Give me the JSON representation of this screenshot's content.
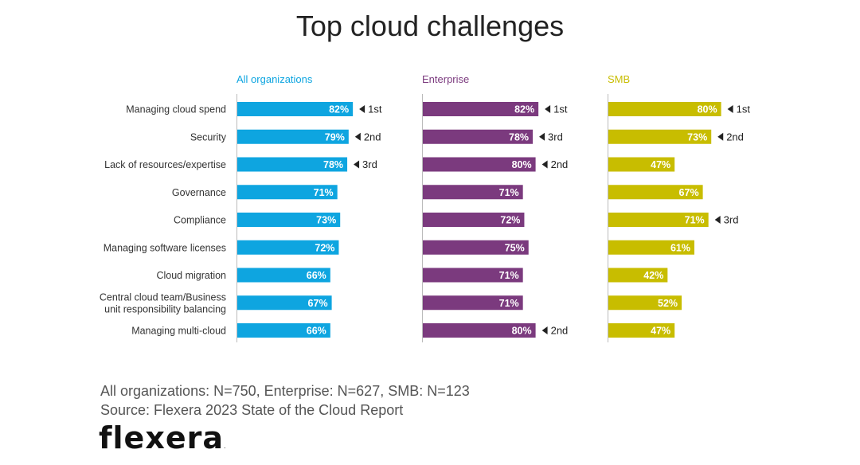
{
  "colors": {
    "all": "#0ea5e0",
    "enterprise": "#7b3a7e",
    "smb": "#c8bd00",
    "label_text": "#ffffff",
    "axis": "#bbbbbb",
    "text": "#333333"
  },
  "chart_data": {
    "type": "bar",
    "title": "Top cloud challenges",
    "categories": [
      "Managing cloud spend",
      "Security",
      "Lack of resources/expertise",
      "Governance",
      "Compliance",
      "Managing software licenses",
      "Cloud migration",
      "Central cloud team/Business unit responsibility balancing",
      "Managing multi-cloud"
    ],
    "category_lines": [
      [
        "Managing cloud spend"
      ],
      [
        "Security"
      ],
      [
        "Lack of resources/expertise"
      ],
      [
        "Governance"
      ],
      [
        "Compliance"
      ],
      [
        "Managing software licenses"
      ],
      [
        "Cloud migration"
      ],
      [
        "Central cloud team/Business",
        "unit responsibility balancing"
      ],
      [
        "Managing multi-cloud"
      ]
    ],
    "series": [
      {
        "name": "All organizations",
        "color_key": "all",
        "values": [
          82,
          79,
          78,
          71,
          73,
          72,
          66,
          67,
          66
        ],
        "labels": [
          "82%",
          "79%",
          "78%",
          "71%",
          "73%",
          "72%",
          "66%",
          "67%",
          "66%"
        ],
        "ranks": [
          "1st",
          "2nd",
          "3rd",
          "",
          "",
          "",
          "",
          "",
          ""
        ]
      },
      {
        "name": "Enterprise",
        "color_key": "enterprise",
        "values": [
          82,
          78,
          80,
          71,
          72,
          75,
          71,
          71,
          80
        ],
        "labels": [
          "82%",
          "78%",
          "80%",
          "71%",
          "72%",
          "75%",
          "71%",
          "71%",
          "80%"
        ],
        "ranks": [
          "1st",
          "3rd",
          "2nd",
          "",
          "",
          "",
          "",
          "",
          "2nd"
        ]
      },
      {
        "name": "SMB",
        "color_key": "smb",
        "values": [
          80,
          73,
          47,
          67,
          71,
          61,
          42,
          52,
          47
        ],
        "labels": [
          "80%",
          "73%",
          "47%",
          "67%",
          "71%",
          "61%",
          "42%",
          "52%",
          "47%"
        ],
        "ranks": [
          "1st",
          "2nd",
          "",
          "",
          "3rd",
          "",
          "",
          "",
          ""
        ]
      }
    ],
    "xlim": [
      0,
      100
    ],
    "grid": false,
    "legend": "panel-headers"
  },
  "footer": {
    "sample_note": "All organizations: N=750, Enterprise: N=627, SMB: N=123",
    "source": "Source: Flexera 2023 State of the Cloud Report"
  },
  "logo": {
    "text": "flexera"
  }
}
